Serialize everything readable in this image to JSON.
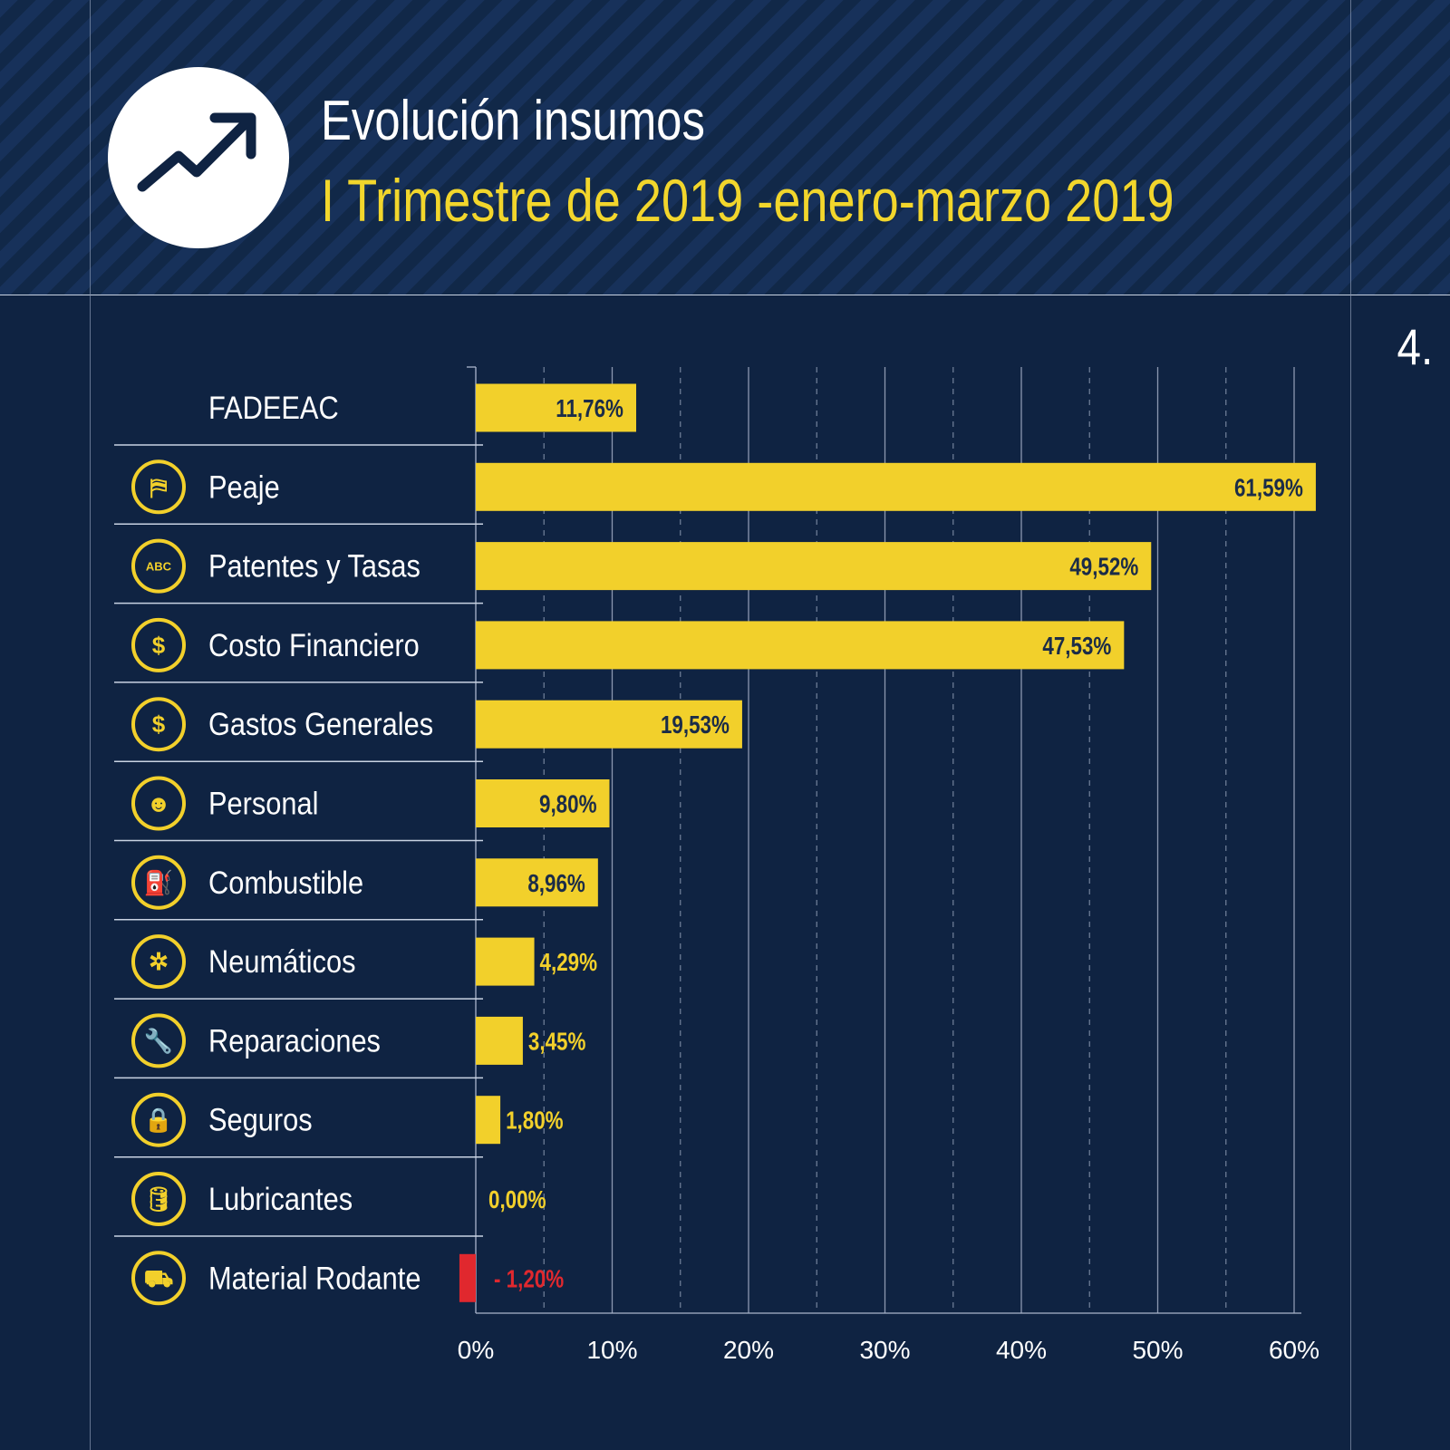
{
  "header": {
    "title": "Evolución insumos",
    "subtitle": "I Trimestre de 2019 -enero-marzo 2019",
    "icon": "trending-up-arrow-icon",
    "page_number": "4."
  },
  "colors": {
    "background": "#0f2342",
    "bar": "#f2d02b",
    "negative": "#e0282e",
    "label_dark": "#1b2c48"
  },
  "chart_data": {
    "type": "bar",
    "orientation": "horizontal",
    "categories": [
      "FADEEAC",
      "Peaje",
      "Patentes y Tasas",
      "Costo Financiero",
      "Gastos Generales",
      "Personal",
      "Combustible",
      "Neumáticos",
      "Reparaciones",
      "Seguros",
      "Lubricantes",
      "Material Rodante"
    ],
    "icons": [
      "",
      "toll-barrier-icon",
      "license-plate-icon",
      "dollar-icon",
      "money-bill-icon",
      "person-icon",
      "fuel-pump-icon",
      "tire-icon",
      "wrench-icon",
      "lock-icon",
      "oil-can-icon",
      "truck-icon"
    ],
    "values": [
      11.76,
      61.59,
      49.52,
      47.53,
      19.53,
      9.8,
      8.96,
      4.29,
      3.45,
      1.8,
      0.0,
      -1.2
    ],
    "value_labels": [
      "11,76%",
      "61,59%",
      "49,52%",
      "47,53%",
      "19,53%",
      "9,80%",
      "8,96%",
      "4,29%",
      "3,45%",
      "1,80%",
      "0,00%",
      "- 1,20%"
    ],
    "xlim": [
      0,
      60
    ],
    "x_ticks": [
      0,
      10,
      20,
      30,
      40,
      50,
      60
    ],
    "x_tick_labels": [
      "0%",
      "10%",
      "20%",
      "30%",
      "40%",
      "50%",
      "60%"
    ],
    "grid": "vertical, solid every 10%, dashed every 5%",
    "xlabel": "",
    "ylabel": "",
    "title": ""
  }
}
